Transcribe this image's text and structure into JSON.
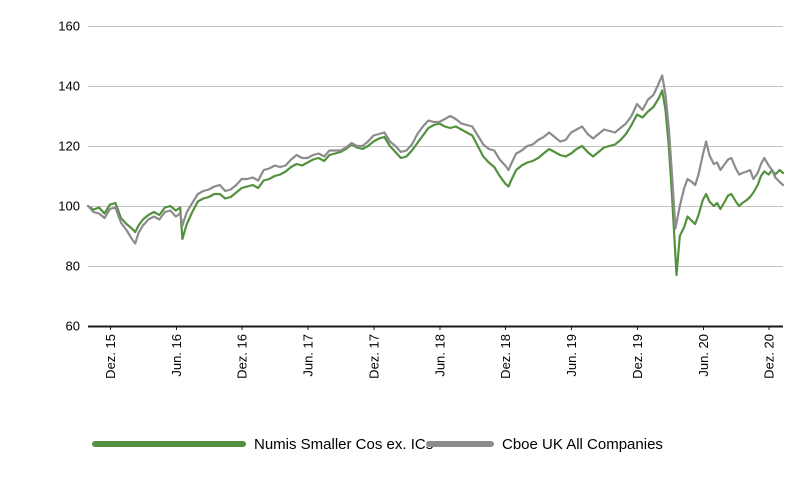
{
  "chart_data": {
    "type": "line",
    "title": "",
    "legend_position": "bottom",
    "grid": true,
    "y_axis": {
      "min": 60,
      "max": 160,
      "tick_values": [
        160,
        140,
        120,
        100,
        80,
        60
      ],
      "tick_labels": [
        "160",
        "140",
        "120",
        "100",
        "80",
        "60"
      ]
    },
    "x_axis": {
      "t_min": 0,
      "t_max": 63.3,
      "tick_t": [
        2,
        8,
        14,
        20,
        26,
        32,
        38,
        44,
        50,
        56,
        62
      ],
      "tick_labels": [
        "Dez. 15",
        "Jun. 16",
        "Dez. 16",
        "Jun. 17",
        "Dez. 17",
        "Jun. 18",
        "Dez. 18",
        "Jun. 19",
        "Dez. 19",
        "Jun. 20",
        "Dez. 20"
      ]
    },
    "series": [
      {
        "name": "Numis Smaller Cos ex. ICs",
        "color": "#53913e",
        "points": [
          [
            0,
            100
          ],
          [
            0.5,
            98.8
          ],
          [
            1,
            99.5
          ],
          [
            1.5,
            97.5
          ],
          [
            2,
            100.5
          ],
          [
            2.5,
            101
          ],
          [
            3,
            96
          ],
          [
            3.5,
            94
          ],
          [
            4,
            92.5
          ],
          [
            4.3,
            91.3
          ],
          [
            4.6,
            93.5
          ],
          [
            5,
            95.5
          ],
          [
            5.5,
            97
          ],
          [
            6,
            98
          ],
          [
            6.5,
            97
          ],
          [
            7,
            99.5
          ],
          [
            7.5,
            100
          ],
          [
            8,
            98.5
          ],
          [
            8.4,
            99.5
          ],
          [
            8.6,
            89
          ],
          [
            9,
            94
          ],
          [
            9.5,
            98
          ],
          [
            10,
            101.5
          ],
          [
            10.5,
            102.5
          ],
          [
            11,
            103
          ],
          [
            11.5,
            104
          ],
          [
            12,
            104
          ],
          [
            12.5,
            102.5
          ],
          [
            13,
            103
          ],
          [
            13.5,
            104.5
          ],
          [
            14,
            106
          ],
          [
            14.5,
            106.5
          ],
          [
            15,
            107
          ],
          [
            15.5,
            106
          ],
          [
            16,
            108.5
          ],
          [
            16.5,
            109
          ],
          [
            17,
            110
          ],
          [
            17.5,
            110.5
          ],
          [
            18,
            111.5
          ],
          [
            18.5,
            113
          ],
          [
            19,
            114
          ],
          [
            19.5,
            113.5
          ],
          [
            20,
            114.5
          ],
          [
            20.5,
            115.5
          ],
          [
            21,
            116
          ],
          [
            21.5,
            115
          ],
          [
            22,
            117
          ],
          [
            22.5,
            117.5
          ],
          [
            23,
            118
          ],
          [
            23.5,
            119
          ],
          [
            24,
            120.5
          ],
          [
            24.5,
            119.5
          ],
          [
            25,
            119
          ],
          [
            25.5,
            120
          ],
          [
            26,
            121.5
          ],
          [
            26.5,
            122.5
          ],
          [
            27,
            123
          ],
          [
            27.5,
            120
          ],
          [
            28,
            118
          ],
          [
            28.5,
            116
          ],
          [
            29,
            116.5
          ],
          [
            29.5,
            118.5
          ],
          [
            30,
            121
          ],
          [
            30.5,
            123.5
          ],
          [
            31,
            126
          ],
          [
            31.5,
            127
          ],
          [
            32,
            127.5
          ],
          [
            32.5,
            126.5
          ],
          [
            33,
            126
          ],
          [
            33.5,
            126.5
          ],
          [
            34,
            125.5
          ],
          [
            34.5,
            124.5
          ],
          [
            35,
            123.5
          ],
          [
            35.5,
            120
          ],
          [
            36,
            116.5
          ],
          [
            36.5,
            114.5
          ],
          [
            37,
            113
          ],
          [
            37.5,
            110
          ],
          [
            38,
            107.5
          ],
          [
            38.3,
            106.5
          ],
          [
            38.6,
            109
          ],
          [
            39,
            112
          ],
          [
            39.5,
            113.5
          ],
          [
            40,
            114.5
          ],
          [
            40.5,
            115
          ],
          [
            41,
            116
          ],
          [
            41.5,
            117.5
          ],
          [
            42,
            119
          ],
          [
            42.5,
            118
          ],
          [
            43,
            117
          ],
          [
            43.5,
            116.5
          ],
          [
            44,
            117.5
          ],
          [
            44.5,
            119
          ],
          [
            45,
            120
          ],
          [
            45.5,
            118
          ],
          [
            46,
            116.5
          ],
          [
            46.5,
            118
          ],
          [
            47,
            119.5
          ],
          [
            47.5,
            120
          ],
          [
            48,
            120.5
          ],
          [
            48.5,
            122
          ],
          [
            49,
            124
          ],
          [
            49.5,
            127
          ],
          [
            50,
            130.5
          ],
          [
            50.5,
            129.5
          ],
          [
            51,
            131.5
          ],
          [
            51.5,
            133
          ],
          [
            52,
            136
          ],
          [
            52.3,
            138.5
          ],
          [
            52.6,
            132
          ],
          [
            52.9,
            120
          ],
          [
            53.2,
            103
          ],
          [
            53.6,
            77
          ],
          [
            53.9,
            90
          ],
          [
            54.3,
            93
          ],
          [
            54.6,
            96.5
          ],
          [
            55,
            95
          ],
          [
            55.3,
            94
          ],
          [
            55.6,
            97
          ],
          [
            56,
            102
          ],
          [
            56.3,
            104
          ],
          [
            56.6,
            101.5
          ],
          [
            57,
            100
          ],
          [
            57.3,
            101
          ],
          [
            57.6,
            99
          ],
          [
            58,
            101.5
          ],
          [
            58.3,
            103.5
          ],
          [
            58.6,
            104
          ],
          [
            59,
            101.5
          ],
          [
            59.3,
            100
          ],
          [
            59.6,
            101
          ],
          [
            60,
            102
          ],
          [
            60.3,
            103
          ],
          [
            60.6,
            104.5
          ],
          [
            61,
            107
          ],
          [
            61.3,
            110
          ],
          [
            61.6,
            111.5
          ],
          [
            62,
            110.5
          ],
          [
            62.3,
            112
          ],
          [
            62.6,
            110.5
          ],
          [
            63,
            112
          ],
          [
            63.3,
            111
          ]
        ]
      },
      {
        "name": "Cboe UK All Companies",
        "color": "#8c8c8c",
        "points": [
          [
            0,
            100
          ],
          [
            0.5,
            98
          ],
          [
            1,
            97.5
          ],
          [
            1.5,
            96
          ],
          [
            2,
            99
          ],
          [
            2.5,
            99.5
          ],
          [
            3,
            94.5
          ],
          [
            3.5,
            92
          ],
          [
            4,
            89
          ],
          [
            4.3,
            87.5
          ],
          [
            4.6,
            91
          ],
          [
            5,
            93.5
          ],
          [
            5.5,
            95.5
          ],
          [
            6,
            96.5
          ],
          [
            6.5,
            95.5
          ],
          [
            7,
            98
          ],
          [
            7.5,
            98.5
          ],
          [
            8,
            96.5
          ],
          [
            8.4,
            97.5
          ],
          [
            8.6,
            93.5
          ],
          [
            9,
            98
          ],
          [
            9.5,
            101
          ],
          [
            10,
            104
          ],
          [
            10.5,
            105
          ],
          [
            11,
            105.5
          ],
          [
            11.5,
            106.5
          ],
          [
            12,
            107
          ],
          [
            12.5,
            105
          ],
          [
            13,
            105.5
          ],
          [
            13.5,
            107
          ],
          [
            14,
            109
          ],
          [
            14.5,
            109
          ],
          [
            15,
            109.5
          ],
          [
            15.5,
            108.5
          ],
          [
            16,
            112
          ],
          [
            16.5,
            112.5
          ],
          [
            17,
            113.5
          ],
          [
            17.5,
            113
          ],
          [
            18,
            113.5
          ],
          [
            18.5,
            115.5
          ],
          [
            19,
            117
          ],
          [
            19.5,
            116
          ],
          [
            20,
            116
          ],
          [
            20.5,
            117
          ],
          [
            21,
            117.5
          ],
          [
            21.5,
            116.5
          ],
          [
            22,
            118.5
          ],
          [
            22.5,
            118.5
          ],
          [
            23,
            118.5
          ],
          [
            23.5,
            119.5
          ],
          [
            24,
            121
          ],
          [
            24.5,
            120
          ],
          [
            25,
            120
          ],
          [
            25.5,
            121.5
          ],
          [
            26,
            123.5
          ],
          [
            26.5,
            124
          ],
          [
            27,
            124.5
          ],
          [
            27.5,
            121.5
          ],
          [
            28,
            120
          ],
          [
            28.5,
            118
          ],
          [
            29,
            118.5
          ],
          [
            29.5,
            120.5
          ],
          [
            30,
            124
          ],
          [
            30.5,
            126.5
          ],
          [
            31,
            128.5
          ],
          [
            31.5,
            128
          ],
          [
            32,
            128
          ],
          [
            32.5,
            129
          ],
          [
            33,
            130
          ],
          [
            33.5,
            129
          ],
          [
            34,
            127.5
          ],
          [
            34.5,
            127
          ],
          [
            35,
            126.5
          ],
          [
            35.5,
            123.5
          ],
          [
            36,
            120.5
          ],
          [
            36.5,
            119
          ],
          [
            37,
            118.5
          ],
          [
            37.5,
            115.5
          ],
          [
            38,
            113.5
          ],
          [
            38.3,
            112
          ],
          [
            38.6,
            114.5
          ],
          [
            39,
            117.5
          ],
          [
            39.5,
            118.5
          ],
          [
            40,
            120
          ],
          [
            40.5,
            120.5
          ],
          [
            41,
            122
          ],
          [
            41.5,
            123
          ],
          [
            42,
            124.5
          ],
          [
            42.5,
            123
          ],
          [
            43,
            121.5
          ],
          [
            43.5,
            122
          ],
          [
            44,
            124.5
          ],
          [
            44.5,
            125.5
          ],
          [
            45,
            126.5
          ],
          [
            45.5,
            124
          ],
          [
            46,
            122.5
          ],
          [
            46.5,
            124
          ],
          [
            47,
            125.5
          ],
          [
            47.5,
            125
          ],
          [
            48,
            124.5
          ],
          [
            48.5,
            126
          ],
          [
            49,
            127.5
          ],
          [
            49.5,
            130
          ],
          [
            50,
            134
          ],
          [
            50.5,
            132
          ],
          [
            51,
            135.5
          ],
          [
            51.5,
            137
          ],
          [
            52,
            141
          ],
          [
            52.3,
            143.5
          ],
          [
            52.6,
            137
          ],
          [
            52.9,
            126
          ],
          [
            53.2,
            110
          ],
          [
            53.5,
            92.5
          ],
          [
            53.9,
            100
          ],
          [
            54.3,
            106
          ],
          [
            54.6,
            109
          ],
          [
            55,
            108
          ],
          [
            55.3,
            107
          ],
          [
            55.6,
            110.5
          ],
          [
            56,
            117
          ],
          [
            56.3,
            121.5
          ],
          [
            56.6,
            117
          ],
          [
            57,
            114
          ],
          [
            57.3,
            114.5
          ],
          [
            57.6,
            112
          ],
          [
            58,
            114
          ],
          [
            58.3,
            115.5
          ],
          [
            58.6,
            116
          ],
          [
            59,
            112.5
          ],
          [
            59.3,
            110.5
          ],
          [
            59.6,
            111
          ],
          [
            60,
            111.5
          ],
          [
            60.3,
            112
          ],
          [
            60.6,
            109
          ],
          [
            61,
            111
          ],
          [
            61.3,
            114
          ],
          [
            61.6,
            116
          ],
          [
            62,
            113.5
          ],
          [
            62.3,
            112
          ],
          [
            62.6,
            109.5
          ],
          [
            63,
            108
          ],
          [
            63.3,
            107
          ]
        ]
      }
    ]
  },
  "legend": {
    "items": [
      {
        "label": "Numis Smaller Cos ex. ICs",
        "color": "#53913e"
      },
      {
        "label": "Cboe UK All Companies",
        "color": "#8c8c8c"
      }
    ]
  },
  "colors": {
    "background": "#ffffff",
    "gridline": "#c3c3c3",
    "axis_line": "#1a1a1a",
    "tick_text": "#000000",
    "series_green": "#53913e",
    "series_gray": "#8c8c8c"
  }
}
